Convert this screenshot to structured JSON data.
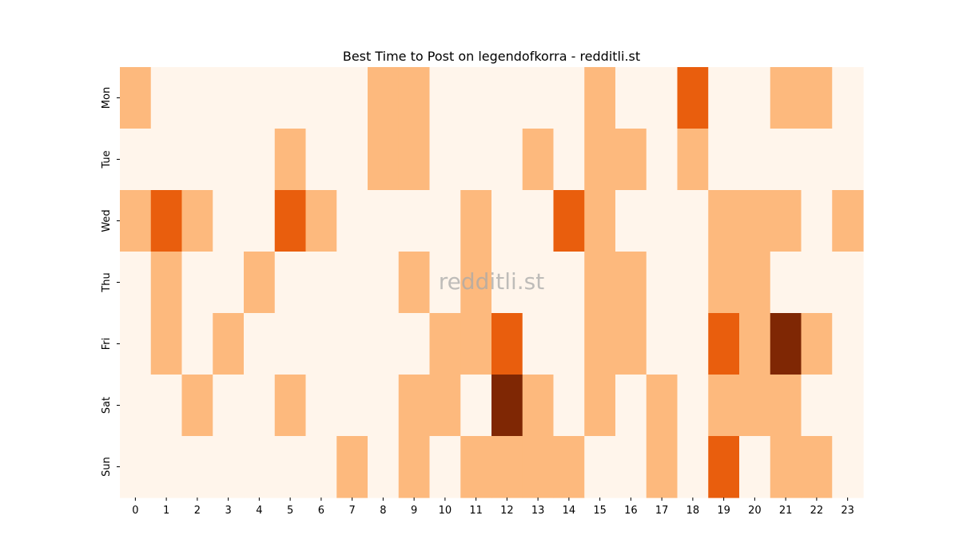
{
  "chart_data": {
    "type": "heatmap",
    "title": "Best Time to Post on legendofkorra - redditli.st",
    "watermark": "redditli.st",
    "x_categories": [
      "0",
      "1",
      "2",
      "3",
      "4",
      "5",
      "6",
      "7",
      "8",
      "9",
      "10",
      "11",
      "12",
      "13",
      "14",
      "15",
      "16",
      "17",
      "18",
      "19",
      "20",
      "21",
      "22",
      "23"
    ],
    "y_categories": [
      "Mon",
      "Tue",
      "Wed",
      "Thu",
      "Fri",
      "Sat",
      "Sun"
    ],
    "values": [
      [
        1,
        0,
        0,
        0,
        0,
        0,
        0,
        0,
        1,
        1,
        0,
        0,
        0,
        0,
        0,
        1,
        0,
        0,
        2,
        0,
        0,
        1,
        1,
        0
      ],
      [
        0,
        0,
        0,
        0,
        0,
        1,
        0,
        0,
        1,
        1,
        0,
        0,
        0,
        1,
        0,
        1,
        1,
        0,
        1,
        0,
        0,
        0,
        0,
        0
      ],
      [
        1,
        2,
        1,
        0,
        0,
        2,
        1,
        0,
        0,
        0,
        0,
        1,
        0,
        0,
        2,
        1,
        0,
        0,
        0,
        1,
        1,
        1,
        0,
        1
      ],
      [
        0,
        1,
        0,
        0,
        1,
        0,
        0,
        0,
        0,
        1,
        0,
        1,
        0,
        0,
        0,
        1,
        1,
        0,
        0,
        1,
        1,
        0,
        0,
        0
      ],
      [
        0,
        1,
        0,
        1,
        0,
        0,
        0,
        0,
        0,
        0,
        1,
        1,
        2,
        0,
        0,
        1,
        1,
        0,
        0,
        2,
        1,
        3,
        1,
        0
      ],
      [
        0,
        0,
        1,
        0,
        0,
        1,
        0,
        0,
        0,
        1,
        1,
        0,
        3,
        1,
        0,
        1,
        0,
        1,
        0,
        1,
        1,
        1,
        0,
        0
      ],
      [
        0,
        0,
        0,
        0,
        0,
        0,
        0,
        1,
        0,
        1,
        0,
        1,
        1,
        1,
        1,
        0,
        0,
        1,
        0,
        2,
        0,
        1,
        1,
        0
      ]
    ],
    "colors": [
      "#fff5eb",
      "#fdb97d",
      "#e95e0d",
      "#7f2704"
    ],
    "grid": false,
    "legend": "none"
  }
}
